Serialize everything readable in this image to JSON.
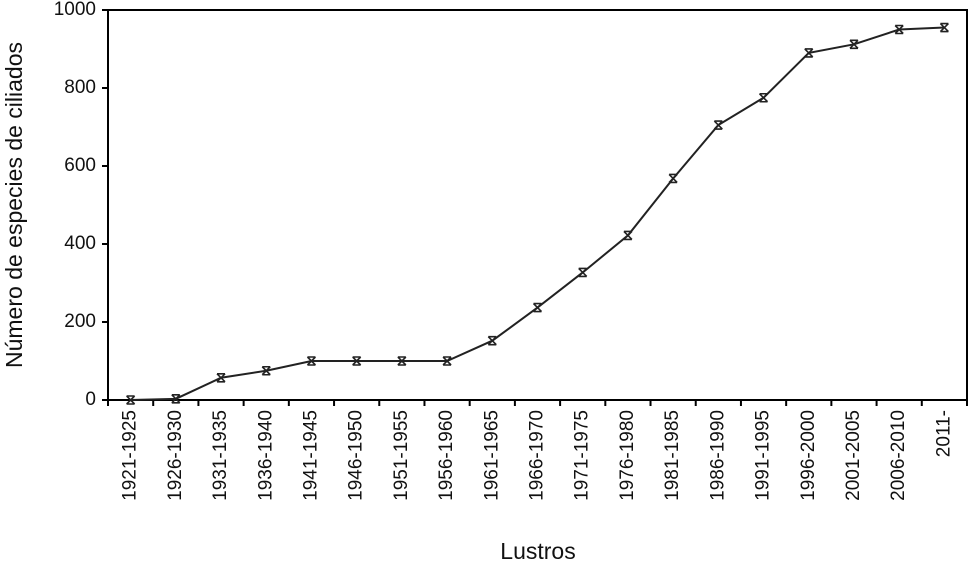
{
  "chart_data": {
    "type": "line",
    "x_label": "Lustros",
    "y_label": "Número de especies de ciliados",
    "categories": [
      "1921-1925",
      "1926-1930",
      "1931-1935",
      "1936-1940",
      "1941-1945",
      "1946-1950",
      "1951-1955",
      "1956-1960",
      "1961-1965",
      "1966-1970",
      "1971-1975",
      "1976-1980",
      "1981-1985",
      "1986-1990",
      "1991-1995",
      "1996-2000",
      "2001-2005",
      "2006-2010",
      "2011-"
    ],
    "values": [
      0,
      3,
      57,
      75,
      100,
      100,
      100,
      100,
      152,
      237,
      327,
      422,
      568,
      705,
      775,
      890,
      912,
      950,
      955
    ],
    "color": "#222222",
    "ylim": [
      0,
      1000
    ],
    "yticks": [
      0,
      200,
      400,
      600,
      800,
      1000
    ],
    "grid": false
  }
}
